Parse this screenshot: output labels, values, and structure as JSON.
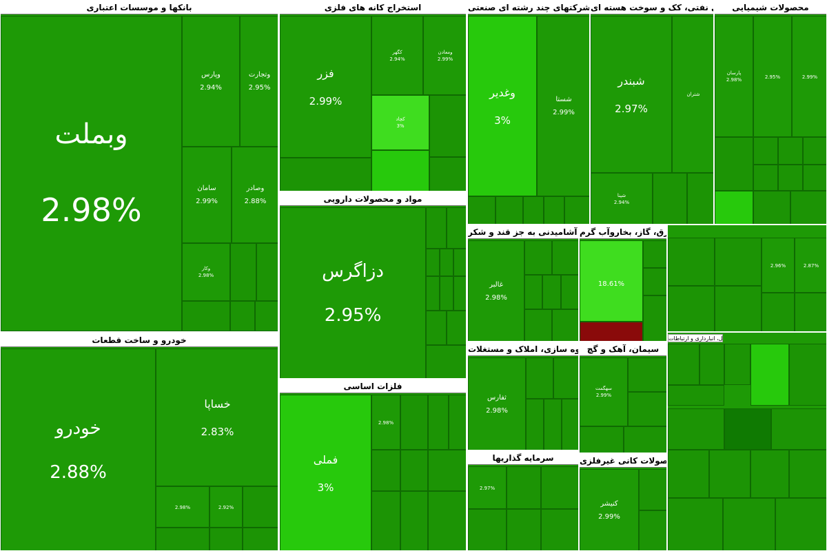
{
  "colors": {
    "base": "#1e9a06",
    "bright": "#27c90c",
    "light": "#3fdd1f",
    "dark": "#0f7a02",
    "red": "#8a0a0a"
  },
  "sectors": {
    "banks": {
      "title": "بانکها و موسسات اعتباری",
      "tiles": {
        "vbemellat": {
          "name": "وبملت",
          "pct": "2.98%"
        },
        "vparsian": {
          "name": "وپارس",
          "pct": "2.94%"
        },
        "vtejarat": {
          "name": "وتجارت",
          "pct": "2.95%"
        },
        "saman": {
          "name": "سامان",
          "pct": "2.99%"
        },
        "vsaderat": {
          "name": "وصادر",
          "pct": "2.88%"
        },
        "vkar": {
          "name": "وکار",
          "pct": "2.98%"
        }
      }
    },
    "auto": {
      "title": "خودرو و ساخت قطعات",
      "tiles": {
        "khodro": {
          "name": "خودرو",
          "pct": "2.88%"
        },
        "khsapa": {
          "name": "خساپا",
          "pct": "2.83%"
        },
        "small1": {
          "pct": "2.98%"
        },
        "small2": {
          "pct": "2.92%"
        }
      }
    },
    "metal_mining": {
      "title": "استخراج کانه های فلزی",
      "tiles": {
        "fazar": {
          "name": "فزر",
          "pct": "2.99%"
        },
        "kgohar": {
          "name": "کگهر",
          "pct": "2.94%"
        },
        "vamaadan": {
          "name": "ومعادن",
          "pct": "2.99%"
        },
        "kchad": {
          "name": "کچاد",
          "pct": "3%"
        }
      }
    },
    "diverse": {
      "title": "شرکتهای چند رشته ای صنعتی",
      "tiles": {
        "vghadir": {
          "name": "وغدیر",
          "pct": "3%"
        },
        "shasta": {
          "name": "شستا",
          "pct": "2.99%"
        }
      }
    },
    "refinery": {
      "title": "فراورده های نفتی، کک و سوخت هسته ای",
      "tiles": {
        "shebandar": {
          "name": "شبندر",
          "pct": "2.97%"
        },
        "shetran": {
          "name": "شتران"
        },
        "shepna": {
          "name": "شپنا",
          "pct": "2.94%"
        }
      }
    },
    "chemical": {
      "title": "محصولات شیمیایی",
      "tiles": {
        "parsan": {
          "name": "پارسان",
          "pct": "2.98%"
        },
        "small_pct": {
          "pct": "2.95%"
        },
        "small_pct2": {
          "pct": "2.99%"
        },
        "small_pct3": {
          "pct": "2.87%"
        },
        "small_pct4": {
          "pct": "2.96%"
        }
      }
    },
    "pharma": {
      "title": "مواد و محصولات دارویی",
      "tiles": {
        "dalgaras": {
          "name": "دزاگرس",
          "pct": "2.95%"
        }
      }
    },
    "basic_metals": {
      "title": "فلزات اساسی",
      "tiles": {
        "femli": {
          "name": "فملی",
          "pct": "3%"
        },
        "small_pct": {
          "pct": "2.98%"
        }
      }
    },
    "utilities": {
      "title": "عرضه برق، گاز، بخاروآب گرم"
    },
    "food": {
      "title": "محصولات غذایی و آشامیدنی به جز قند و شکر",
      "tiles": {
        "ghalbor": {
          "name": "غالبر",
          "pct": "2.98%"
        },
        "highlight": {
          "pct": "18.61%"
        }
      }
    },
    "construction": {
      "title": "انبوه سازی، املاک و مستغلات",
      "tiles": {
        "tharas": {
          "name": "ثفارس",
          "pct": "2.98%"
        }
      }
    },
    "cement": {
      "title": "سیمان، آهک و گچ",
      "tiles": {
        "sehgmat": {
          "name": "سهگمت",
          "pct": "2.99%"
        }
      }
    },
    "investment": {
      "title": "سرمایه گذاریها",
      "tiles": {
        "small_pct": {
          "pct": "2.97%"
        }
      }
    },
    "non_metal": {
      "title": "سایر محصولات کانی غیرفلزی",
      "tiles": {
        "kenisher": {
          "name": "کنیشر",
          "pct": "2.99%"
        }
      }
    },
    "transport": {
      "title": "حمل ونقل، انبارداری و ارتباطات"
    },
    "partial_top": {
      "title": "اورده های نفتی"
    }
  }
}
